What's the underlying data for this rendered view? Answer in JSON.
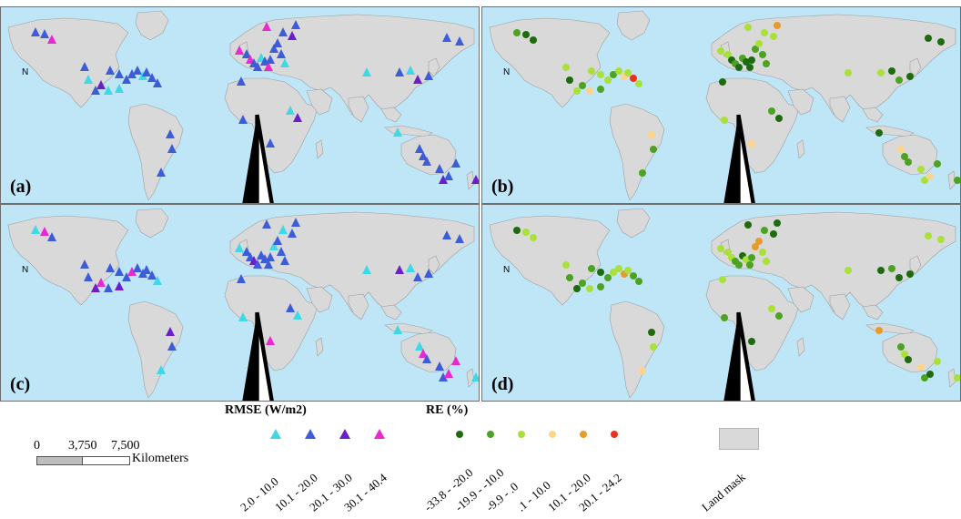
{
  "panels": [
    {
      "label": "(a)",
      "kind": "rmse"
    },
    {
      "label": "(b)",
      "kind": "re"
    },
    {
      "label": "(c)",
      "kind": "rmse"
    },
    {
      "label": "(d)",
      "kind": "re"
    }
  ],
  "north_label": "N",
  "legend": {
    "rmse_title": "RMSE (W/m2)",
    "rmse_classes": [
      {
        "label": "2.0 - 10.0",
        "color": "#3fd8e6"
      },
      {
        "label": "10.1 - 20.0",
        "color": "#3d5cd8"
      },
      {
        "label": "20.1 - 30.0",
        "color": "#6a1fc9"
      },
      {
        "label": "30.1 - 40.4",
        "color": "#e62ad0"
      }
    ],
    "re_title": "RE (%)",
    "re_classes": [
      {
        "label": "-33.8 - -20.0",
        "color": "#1d6b0e"
      },
      {
        "label": "-19.9 - -10.0",
        "color": "#4ca321"
      },
      {
        "label": "-9.9 - .0",
        "color": "#a9e03a"
      },
      {
        "label": ".1 - 10.0",
        "color": "#ffd48a"
      },
      {
        "label": "10.1 - 20.0",
        "color": "#e89a2a"
      },
      {
        "label": "20.1 - 24.2",
        "color": "#e8321c"
      }
    ],
    "land_mask_label": "Land mask",
    "land_color": "#d9d9d9",
    "ocean_color": "#bfe6f7"
  },
  "scale": {
    "ticks": [
      "0",
      "3,750",
      "7,500"
    ],
    "unit": "Kilometers"
  }
}
